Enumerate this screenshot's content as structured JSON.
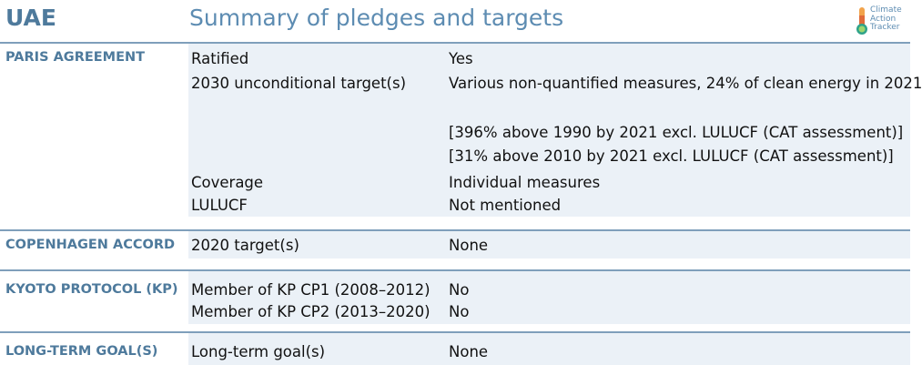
{
  "header": {
    "country": "UAE",
    "title": "Summary of pledges and targets",
    "logo_lines": [
      "Climate",
      "Action",
      "Tracker"
    ]
  },
  "sections": {
    "paris": {
      "label": "PARIS AGREEMENT",
      "rows": [
        {
          "key": "Ratified",
          "value": "Yes"
        },
        {
          "key": "2030 unconditional target(s)",
          "value": "Various non-quantified measures, 24% of clean energy in 2021"
        },
        {
          "key": "",
          "value": "[396% above 1990 by 2021 excl. LULUCF (CAT assessment)]"
        },
        {
          "key": "",
          "value": "[31% above 2010 by 2021 excl. LULUCF (CAT assessment)]"
        },
        {
          "key": "Coverage",
          "value": "Individual measures"
        },
        {
          "key": "LULUCF",
          "value": "Not mentioned"
        }
      ]
    },
    "copenhagen": {
      "label": "COPENHAGEN ACCORD",
      "rows": [
        {
          "key": "2020 target(s)",
          "value": "None"
        }
      ]
    },
    "kyoto": {
      "label": "KYOTO PROTOCOL (KP)",
      "rows": [
        {
          "key": "Member of KP CP1 (2008–2012)",
          "value": "No"
        },
        {
          "key": "Member of KP CP2 (2013–2020)",
          "value": "No"
        }
      ]
    },
    "longterm": {
      "label": "LONG-TERM GOAL(S)",
      "rows": [
        {
          "key": "Long-term goal(s)",
          "value": "None"
        }
      ]
    }
  },
  "colors": {
    "accent": "#4e7a9c",
    "title": "#5d8cb2",
    "row_background": "#ebf1f7",
    "separator": "#7f9fbb"
  }
}
